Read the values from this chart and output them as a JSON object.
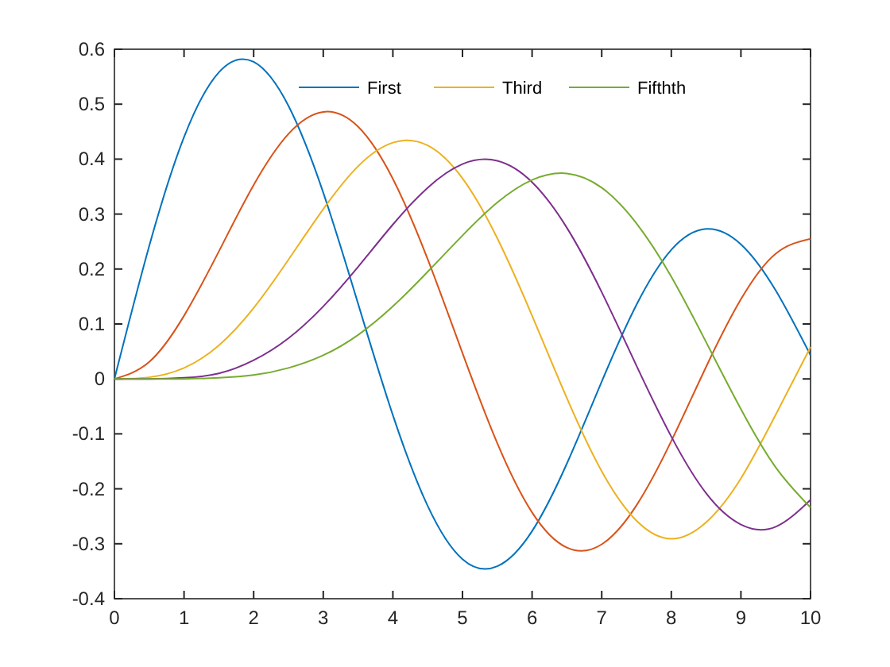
{
  "chart_data": {
    "type": "line",
    "x": [
      0,
      0.5,
      1,
      1.5,
      2,
      2.5,
      3,
      3.5,
      4,
      4.5,
      5,
      5.5,
      6,
      6.5,
      7,
      7.5,
      8,
      8.5,
      9,
      9.5,
      10
    ],
    "series": [
      {
        "name": "First",
        "color": "#0072bd",
        "values": [
          0,
          0.242,
          0.44,
          0.558,
          0.577,
          0.497,
          0.339,
          0.137,
          -0.066,
          -0.231,
          -0.328,
          -0.341,
          -0.277,
          -0.154,
          -0.005,
          0.135,
          0.235,
          0.273,
          0.245,
          0.161,
          0.043
        ]
      },
      {
        "color": "#d95319",
        "values": [
          0,
          0.031,
          0.115,
          0.232,
          0.353,
          0.446,
          0.486,
          0.459,
          0.364,
          0.218,
          0.047,
          -0.117,
          -0.243,
          -0.307,
          -0.301,
          -0.23,
          -0.113,
          0.022,
          0.145,
          0.228,
          0.255
        ]
      },
      {
        "name": "Third",
        "color": "#edb120",
        "values": [
          0,
          0.003,
          0.02,
          0.061,
          0.129,
          0.217,
          0.309,
          0.387,
          0.43,
          0.425,
          0.365,
          0.256,
          0.115,
          -0.035,
          -0.168,
          -0.258,
          -0.291,
          -0.261,
          -0.181,
          -0.065,
          0.058
        ]
      },
      {
        "color": "#7e2f8e",
        "values": [
          0,
          0,
          0.002,
          0.01,
          0.034,
          0.074,
          0.132,
          0.204,
          0.281,
          0.348,
          0.391,
          0.397,
          0.358,
          0.275,
          0.158,
          0.024,
          -0.105,
          -0.208,
          -0.265,
          -0.269,
          -0.22
        ]
      },
      {
        "name": "Fifthth",
        "color": "#77ac30",
        "values": [
          0,
          0,
          0,
          0.002,
          0.007,
          0.02,
          0.043,
          0.08,
          0.132,
          0.195,
          0.261,
          0.321,
          0.362,
          0.374,
          0.348,
          0.283,
          0.186,
          0.067,
          -0.055,
          -0.161,
          -0.234
        ]
      }
    ],
    "xlim": [
      0,
      10
    ],
    "xticks": [
      0,
      1,
      2,
      3,
      4,
      5,
      6,
      7,
      8,
      9,
      10
    ],
    "ylim": [
      -0.4,
      0.6
    ],
    "yticks": [
      -0.4,
      -0.3,
      -0.2,
      -0.1,
      0,
      0.1,
      0.2,
      0.3,
      0.4,
      0.5,
      0.6
    ],
    "legend": "top",
    "grid": false
  }
}
